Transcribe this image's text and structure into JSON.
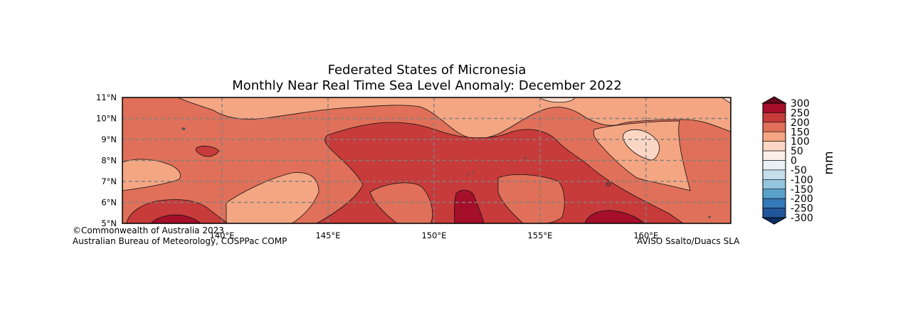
{
  "title": {
    "line1": "Federated States of Micronesia",
    "line2": "Monthly Near Real Time Sea Level Anomaly: December 2022"
  },
  "map": {
    "lon_ticks": [
      "140°E",
      "145°E",
      "150°E",
      "155°E",
      "160°E"
    ],
    "lat_ticks": [
      "5°N",
      "6°N",
      "7°N",
      "8°N",
      "9°N",
      "10°N",
      "11°N"
    ],
    "extent": {
      "lon": [
        135.3,
        164.0
      ],
      "lat": [
        5,
        11
      ]
    },
    "gridline_color": "#808080"
  },
  "colorbar": {
    "unit_label": "mm",
    "labels": [
      "300",
      "250",
      "200",
      "150",
      "100",
      "50",
      "0",
      "-50",
      "-100",
      "-150",
      "-200",
      "-250",
      "-300"
    ],
    "colors": [
      "#a50f2a",
      "#c73b3a",
      "#e07059",
      "#f4a683",
      "#fbd6c4",
      "#fbeee8",
      "#e9f1f6",
      "#c4deec",
      "#94c5df",
      "#5aa1cc",
      "#3578b8",
      "#22569a"
    ],
    "extend_top_color": "#67061f",
    "extend_bottom_color": "#0b2f63"
  },
  "credits": {
    "line1": "©Commonwealth of Australia 2023",
    "line2": "Australian Bureau of Meteorology, COSPPac COMP",
    "source": "AVISO Ssalto/Duacs SLA"
  }
}
